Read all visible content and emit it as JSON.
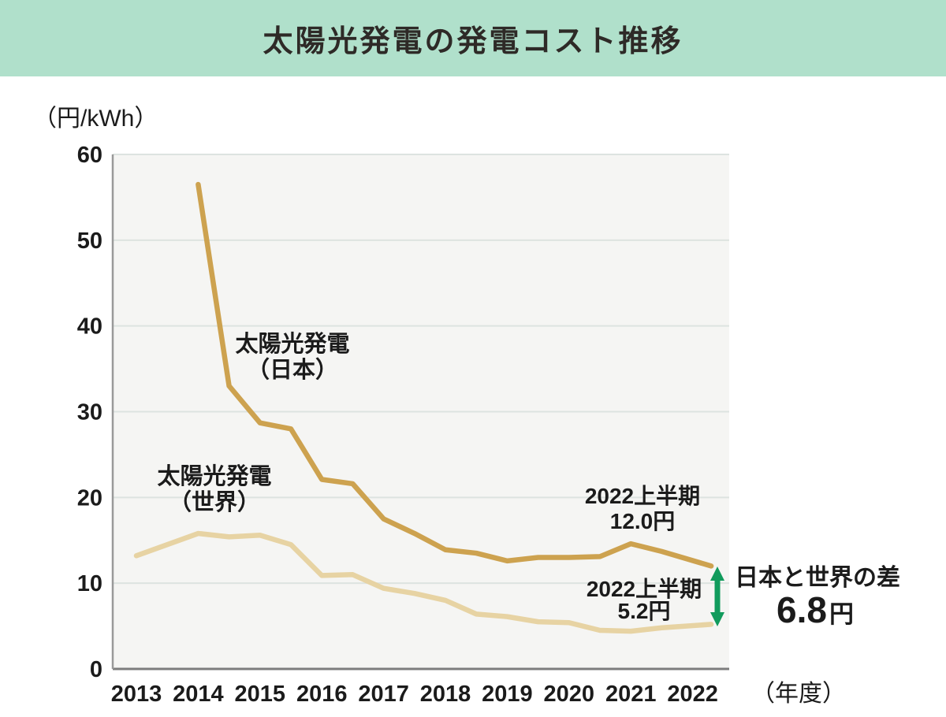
{
  "header": {
    "title": "太陽光発電の発電コスト推移"
  },
  "colors": {
    "header_bg": "#b0e0cb",
    "japan_line": "#cda24f",
    "world_line": "#e7d3a3",
    "diff_green": "#119b5c",
    "plot_bg": "#f5f5f3",
    "grid": "#dde3e0",
    "text": "#1b1b1b"
  },
  "chart_data": {
    "type": "line",
    "title": "太陽光発電の発電コスト推移",
    "y_unit_label": "（円/kWh）",
    "x_axis_label": "（年度）",
    "xlabel": "年度",
    "ylabel": "円/kWh",
    "ylim": [
      0,
      60
    ],
    "grid": "horizontal gridlines every 10",
    "legend_position": "inline labels beside lines",
    "x_tick_labels": [
      "2013",
      "2014",
      "2015",
      "2016",
      "2017",
      "2018",
      "2019",
      "2020",
      "2021",
      "2022"
    ],
    "y_tick_labels": [
      "0",
      "10",
      "20",
      "30",
      "40",
      "50",
      "60"
    ],
    "series": [
      {
        "name": "太陽光発電（日本）",
        "label_lines": [
          "太陽光発電",
          "（日本）"
        ],
        "color": "#cda24f",
        "x": [
          2014,
          2014.5,
          2015,
          2015.5,
          2016,
          2016.5,
          2017,
          2017.5,
          2018,
          2018.5,
          2019,
          2019.5,
          2020,
          2020.5,
          2021,
          2021.5,
          2022.3
        ],
        "values": [
          56.5,
          33.0,
          28.7,
          28.0,
          22.1,
          21.6,
          17.5,
          15.8,
          13.9,
          13.5,
          12.6,
          13.0,
          13.0,
          13.1,
          14.6,
          13.7,
          12.0
        ]
      },
      {
        "name": "太陽光発電（世界）",
        "label_lines": [
          "太陽光発電",
          "（世界）"
        ],
        "color": "#e7d3a3",
        "x": [
          2013,
          2013.5,
          2014,
          2014.5,
          2015,
          2015.5,
          2016,
          2016.5,
          2017,
          2017.5,
          2018,
          2018.5,
          2019,
          2019.5,
          2020,
          2020.5,
          2021,
          2021.5,
          2022.3
        ],
        "values": [
          13.2,
          14.5,
          15.8,
          15.4,
          15.6,
          14.5,
          10.9,
          11.0,
          9.4,
          8.8,
          8.0,
          6.4,
          6.1,
          5.5,
          5.4,
          4.5,
          4.4,
          4.8,
          5.2
        ]
      }
    ],
    "annotations": [
      {
        "id": "japan_latest",
        "line1": "2022上半期",
        "line2": "12.0円"
      },
      {
        "id": "world_latest",
        "line1": "2022上半期",
        "line2": "5.2円"
      },
      {
        "id": "difference",
        "label": "日本と世界の差",
        "value": "6.8",
        "unit": "円"
      }
    ]
  }
}
